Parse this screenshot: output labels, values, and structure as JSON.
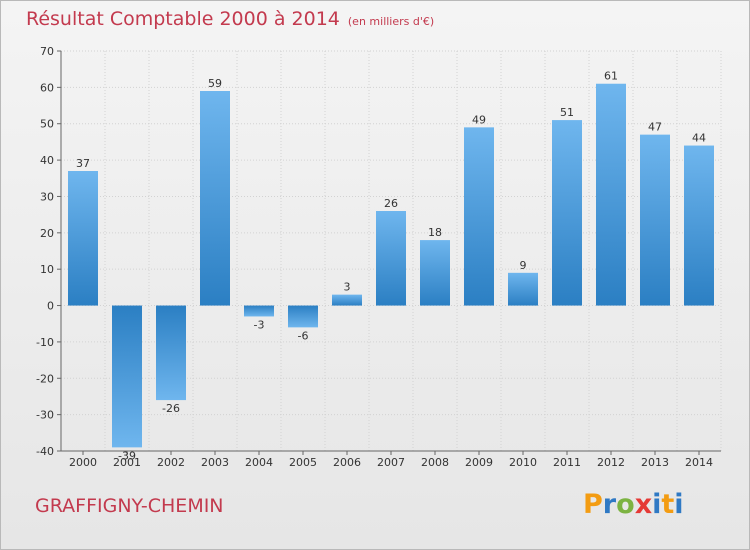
{
  "header": {
    "title": "Résultat Comptable 2000 à 2014",
    "subtitle": "(en milliers d'€)"
  },
  "footer": {
    "commune": "GRAFFIGNY-CHEMIN",
    "logo_text": "Proxiti",
    "logo_letters": [
      {
        "char": "P",
        "color": "#f39c12"
      },
      {
        "char": "r",
        "color": "#2f79c4"
      },
      {
        "char": "o",
        "color": "#7cb342"
      },
      {
        "char": "x",
        "color": "#e53935"
      },
      {
        "char": "i",
        "color": "#2f79c4"
      },
      {
        "char": "t",
        "color": "#f39c12"
      },
      {
        "char": "i",
        "color": "#2f79c4"
      }
    ]
  },
  "chart_data": {
    "type": "bar",
    "title": "Résultat Comptable 2000 à 2014",
    "subtitle": "(en milliers d'€)",
    "xlabel": "",
    "ylabel": "",
    "categories": [
      "2000",
      "2001",
      "2002",
      "2003",
      "2004",
      "2005",
      "2006",
      "2007",
      "2008",
      "2009",
      "2010",
      "2011",
      "2012",
      "2013",
      "2014"
    ],
    "values": [
      37,
      -39,
      -26,
      59,
      -3,
      -6,
      3,
      26,
      18,
      49,
      9,
      51,
      61,
      47,
      44
    ],
    "ylim": [
      -40,
      70
    ],
    "yticks": [
      70,
      60,
      50,
      40,
      30,
      20,
      10,
      0,
      -10,
      -20,
      -30,
      -40
    ],
    "grid": true,
    "bar_color_light": "#6fb6ee",
    "bar_color_dark": "#2b7fc3"
  }
}
